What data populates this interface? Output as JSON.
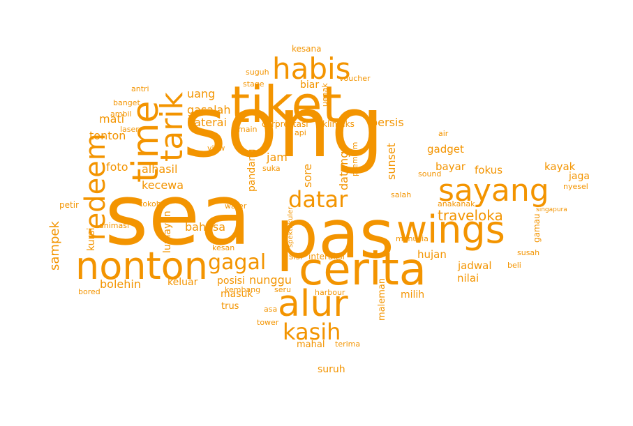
{
  "color": "#f39400",
  "words": [
    {
      "text": "song"
    },
    {
      "text": "sea"
    },
    {
      "text": "pas"
    },
    {
      "text": "tiket"
    },
    {
      "text": "cerita"
    },
    {
      "text": "wings"
    },
    {
      "text": "nonton"
    },
    {
      "text": "alur"
    },
    {
      "text": "time"
    },
    {
      "text": "sayang"
    },
    {
      "text": "habis"
    },
    {
      "text": "tarik"
    },
    {
      "text": "redeem"
    },
    {
      "text": "datar"
    },
    {
      "text": "kasih"
    },
    {
      "text": "gagal"
    },
    {
      "text": "traveloka"
    },
    {
      "text": "sampek"
    },
    {
      "text": "uang"
    },
    {
      "text": "gasalah"
    },
    {
      "text": "baterai"
    },
    {
      "text": "mati"
    },
    {
      "text": "tonton"
    },
    {
      "text": "foto"
    },
    {
      "text": "alhasil"
    },
    {
      "text": "kecewa"
    },
    {
      "text": "lumayan"
    },
    {
      "text": "bahasa"
    },
    {
      "text": "bolehin"
    },
    {
      "text": "keluar"
    },
    {
      "text": "posisi"
    },
    {
      "text": "nunggu"
    },
    {
      "text": "masuk"
    },
    {
      "text": "trus"
    },
    {
      "text": "asa"
    },
    {
      "text": "kembang"
    },
    {
      "text": "seru"
    },
    {
      "text": "harbour"
    },
    {
      "text": "jam"
    },
    {
      "text": "pandang"
    },
    {
      "text": "sore"
    },
    {
      "text": "dateng"
    },
    {
      "text": "premium"
    },
    {
      "text": "persis"
    },
    {
      "text": "sunset"
    },
    {
      "text": "gadget"
    },
    {
      "text": "bayar"
    },
    {
      "text": "fokus"
    },
    {
      "text": "kayak"
    },
    {
      "text": "jaga"
    },
    {
      "text": "nyesel"
    },
    {
      "text": "gamau"
    },
    {
      "text": "hujan"
    },
    {
      "text": "jadwal"
    },
    {
      "text": "nilai"
    },
    {
      "text": "milih"
    },
    {
      "text": "maleman"
    },
    {
      "text": "interaksi"
    },
    {
      "text": "sisi"
    },
    {
      "text": "spektakuler"
    },
    {
      "text": "kesana"
    },
    {
      "text": "suguh"
    },
    {
      "text": "stage"
    },
    {
      "text": "uenak"
    },
    {
      "text": "biar"
    },
    {
      "text": "voucher"
    },
    {
      "text": "antri"
    },
    {
      "text": "banget"
    },
    {
      "text": "ambil"
    },
    {
      "text": "laser"
    },
    {
      "text": "main"
    },
    {
      "text": "cari"
    },
    {
      "text": "prestasi"
    },
    {
      "text": "klimaks"
    },
    {
      "text": "api"
    },
    {
      "text": "air"
    },
    {
      "text": "view"
    },
    {
      "text": "suka"
    },
    {
      "text": "sound"
    },
    {
      "text": "salah"
    },
    {
      "text": "anakanak"
    },
    {
      "text": "singapura"
    },
    {
      "text": "manusia"
    },
    {
      "text": "susah"
    },
    {
      "text": "beli"
    },
    {
      "text": "tokoh"
    },
    {
      "text": "petir"
    },
    {
      "text": "water"
    },
    {
      "text": "kursi"
    },
    {
      "text": "animasi"
    },
    {
      "text": "kesan"
    },
    {
      "text": "bored"
    },
    {
      "text": "tower"
    },
    {
      "text": "terima"
    },
    {
      "text": "mahal"
    },
    {
      "text": "suruh"
    }
  ]
}
